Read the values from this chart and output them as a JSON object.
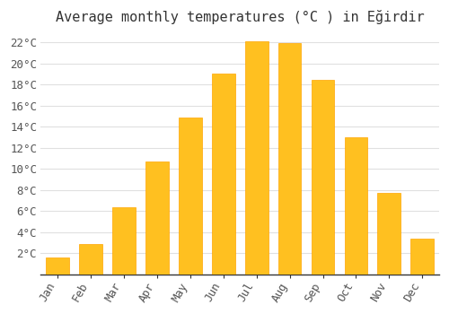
{
  "title": "Average monthly temperatures (°C ) in Eğirdir",
  "months": [
    "Jan",
    "Feb",
    "Mar",
    "Apr",
    "May",
    "Jun",
    "Jul",
    "Aug",
    "Sep",
    "Oct",
    "Nov",
    "Dec"
  ],
  "values": [
    1.6,
    2.9,
    6.4,
    10.7,
    14.9,
    19.0,
    22.1,
    21.9,
    18.4,
    13.0,
    7.7,
    3.4
  ],
  "bar_color": "#FFC020",
  "bar_edge_color": "#FFA500",
  "background_color": "#ffffff",
  "plot_bg_color": "#ffffff",
  "grid_color": "#e0e0e0",
  "ylim": [
    0,
    23.0
  ],
  "yticks": [
    2,
    4,
    6,
    8,
    10,
    12,
    14,
    16,
    18,
    20,
    22
  ],
  "title_fontsize": 11,
  "tick_fontsize": 9,
  "axis_color": "#999999"
}
